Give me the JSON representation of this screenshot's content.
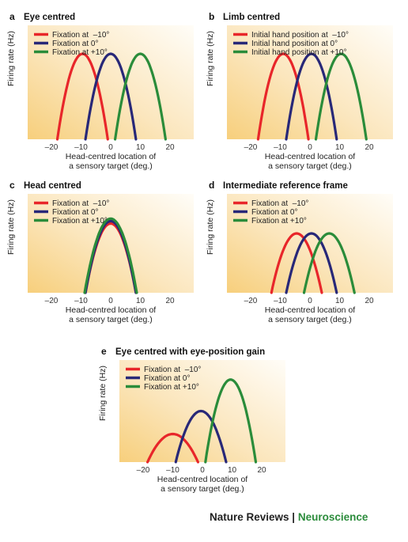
{
  "figure": {
    "credit": {
      "journal": "Nature Reviews",
      "separator": " | ",
      "field": "Neuroscience"
    }
  },
  "chart_data": [
    {
      "type": "line",
      "panel_letter": "a",
      "title": "Eye centred",
      "xlabel_line1": "Head-centred location of",
      "xlabel_line2": "a sensory target (deg.)",
      "ylabel": "Firing rate (Hz)",
      "xlim": [
        -28,
        28
      ],
      "ylim": [
        0,
        1.2
      ],
      "xticks": [
        -20,
        -10,
        0,
        10,
        20
      ],
      "xtick_labels": [
        "–20",
        "–10",
        "0",
        "10",
        "20"
      ],
      "grid": false,
      "legend_position": "top-left",
      "series": [
        {
          "name": "Fixation at  –10°",
          "color": "#e8262a",
          "peak_x": -9.5,
          "peak_y": 0.9,
          "half_width": 8.5
        },
        {
          "name": "Fixation at 0°",
          "color": "#282878",
          "peak_x": 0,
          "peak_y": 0.9,
          "half_width": 8.5
        },
        {
          "name": "Fixation at +10°",
          "color": "#2a8c3a",
          "peak_x": 10,
          "peak_y": 0.9,
          "half_width": 8.5
        }
      ]
    },
    {
      "type": "line",
      "panel_letter": "b",
      "title": "Limb centred",
      "xlabel_line1": "Head-centred location of",
      "xlabel_line2": "a sensory target (deg.)",
      "ylabel": "Firing rate (Hz)",
      "xlim": [
        -28,
        28
      ],
      "ylim": [
        0,
        1.2
      ],
      "xticks": [
        -20,
        -10,
        0,
        10,
        20
      ],
      "xtick_labels": [
        "–20",
        "–10",
        "0",
        "10",
        "20"
      ],
      "grid": false,
      "legend_position": "top-left",
      "series": [
        {
          "name": "Initial hand position at  –10°",
          "color": "#e8262a",
          "peak_x": -9,
          "peak_y": 0.9,
          "half_width": 8.5
        },
        {
          "name": "Initial hand position at 0°",
          "color": "#282878",
          "peak_x": 0.5,
          "peak_y": 0.9,
          "half_width": 8.5
        },
        {
          "name": "Initial hand position at +10°",
          "color": "#2a8c3a",
          "peak_x": 10.5,
          "peak_y": 0.9,
          "half_width": 8.5
        }
      ]
    },
    {
      "type": "line",
      "panel_letter": "c",
      "title": "Head centred",
      "xlabel_line1": "Head-centred location of",
      "xlabel_line2": "a sensory target (deg.)",
      "ylabel": "Firing rate (Hz)",
      "xlim": [
        -28,
        28
      ],
      "ylim": [
        0,
        1.2
      ],
      "xticks": [
        -20,
        -10,
        0,
        10,
        20
      ],
      "xtick_labels": [
        "–20",
        "–10",
        "0",
        "10",
        "20"
      ],
      "grid": false,
      "legend_position": "top-left",
      "series": [
        {
          "name": "Fixation at  –10°",
          "color": "#e8262a",
          "peak_x": 0,
          "peak_y": 0.84,
          "half_width": 8.5
        },
        {
          "name": "Fixation at 0°",
          "color": "#282878",
          "peak_x": 0,
          "peak_y": 0.87,
          "half_width": 8.5
        },
        {
          "name": "Fixation at +10°",
          "color": "#2a8c3a",
          "peak_x": 0,
          "peak_y": 0.9,
          "half_width": 8.8
        }
      ]
    },
    {
      "type": "line",
      "panel_letter": "d",
      "title": "Intermediate reference frame",
      "xlabel_line1": "Head-centred location of",
      "xlabel_line2": "a sensory target (deg.)",
      "ylabel": "Firing rate (Hz)",
      "xlim": [
        -28,
        28
      ],
      "ylim": [
        0,
        1.2
      ],
      "xticks": [
        -20,
        -10,
        0,
        10,
        20
      ],
      "xtick_labels": [
        "–20",
        "–10",
        "0",
        "10",
        "20"
      ],
      "grid": false,
      "legend_position": "top-left",
      "series": [
        {
          "name": "Fixation at  –10°",
          "color": "#e8262a",
          "peak_x": -4.5,
          "peak_y": 0.72,
          "half_width": 8.5
        },
        {
          "name": "Fixation at 0°",
          "color": "#282878",
          "peak_x": 0.5,
          "peak_y": 0.72,
          "half_width": 8.5
        },
        {
          "name": "Fixation at +10°",
          "color": "#2a8c3a",
          "peak_x": 6.5,
          "peak_y": 0.72,
          "half_width": 8.5
        }
      ]
    },
    {
      "type": "line",
      "panel_letter": "e",
      "title": "Eye centred with eye-position gain",
      "xlabel_line1": "Head-centred location of",
      "xlabel_line2": "a sensory target (deg.)",
      "ylabel": "Firing rate (Hz)",
      "xlim": [
        -28,
        28
      ],
      "ylim": [
        0,
        1.2
      ],
      "xticks": [
        -20,
        -10,
        0,
        10,
        20
      ],
      "xtick_labels": [
        "–20",
        "–10",
        "0",
        "10",
        "20"
      ],
      "grid": false,
      "legend_position": "top-left",
      "series": [
        {
          "name": "Fixation at  –10°",
          "color": "#e8262a",
          "peak_x": -10,
          "peak_y": 0.33,
          "half_width": 8.5
        },
        {
          "name": "Fixation at 0°",
          "color": "#282878",
          "peak_x": -0.5,
          "peak_y": 0.6,
          "half_width": 8.5
        },
        {
          "name": "Fixation at +10°",
          "color": "#2a8c3a",
          "peak_x": 9.5,
          "peak_y": 0.97,
          "half_width": 8.5
        }
      ]
    }
  ]
}
